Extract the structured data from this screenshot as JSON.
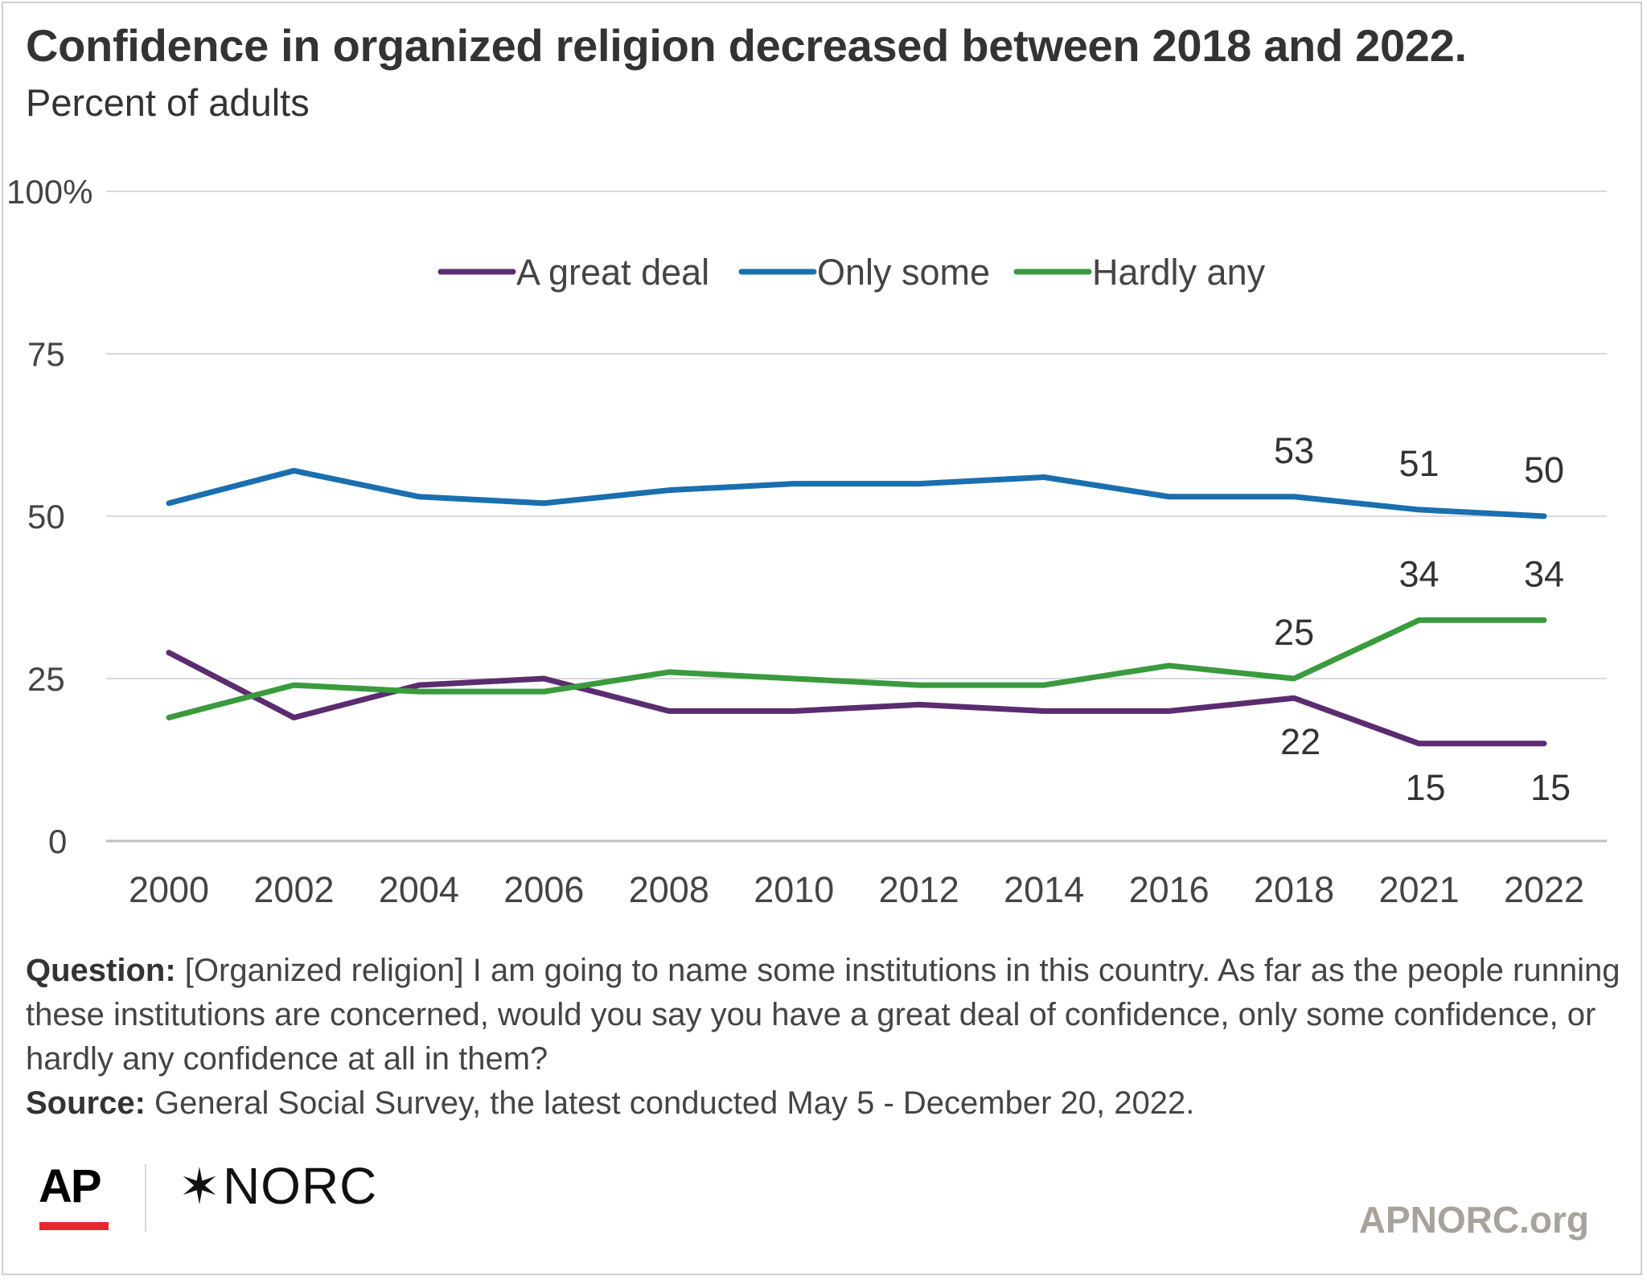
{
  "title": "Confidence in organized religion decreased between 2018 and 2022.",
  "subtitle": "Percent of adults",
  "chart_data": {
    "type": "line",
    "categories": [
      "2000",
      "2002",
      "2004",
      "2006",
      "2008",
      "2010",
      "2012",
      "2014",
      "2016",
      "2018",
      "2021",
      "2022"
    ],
    "y_tick_labels": [
      "100%",
      "75",
      "50",
      "25",
      "0"
    ],
    "y_ticks": [
      100,
      75,
      50,
      25,
      0
    ],
    "ylim": [
      0,
      100
    ],
    "grid": true,
    "legend_position": "top-center",
    "series": [
      {
        "name": "A great deal",
        "color": "#5b2c6f",
        "values": [
          29,
          19,
          24,
          25,
          20,
          20,
          21,
          20,
          20,
          22,
          15,
          15
        ],
        "labeled_points": [
          9,
          10,
          11
        ],
        "label_side": "below"
      },
      {
        "name": "Only some",
        "color": "#1a6faf",
        "values": [
          52,
          57,
          53,
          52,
          54,
          55,
          55,
          56,
          53,
          53,
          51,
          50
        ],
        "labeled_points": [
          9,
          10,
          11
        ],
        "label_side": "above"
      },
      {
        "name": "Hardly any",
        "color": "#3a9a3e",
        "values": [
          19,
          24,
          23,
          23,
          26,
          25,
          24,
          24,
          27,
          25,
          34,
          34
        ],
        "labeled_points": [
          9,
          10,
          11
        ],
        "label_side": "above"
      }
    ]
  },
  "footnote": {
    "question_label": "Question:",
    "question_text": " [Organized religion] I am going to name some institutions in this country. As far as the people running these institutions are concerned, would you say you have a great deal of confidence, only some confidence, or hardly any confidence at all in them?",
    "source_label": "Source:",
    "source_text": " General Social Survey, the latest conducted May 5 - December 20, 2022."
  },
  "logos": {
    "ap": "AP",
    "norc_star": "✶",
    "norc": "NORC"
  },
  "site": "APNORC.org",
  "colors": {
    "grid": "#d9d9d9",
    "axis": "#bfbfbf",
    "text": "#333333",
    "ap_red": "#e8262c",
    "site": "#a8a39a"
  }
}
